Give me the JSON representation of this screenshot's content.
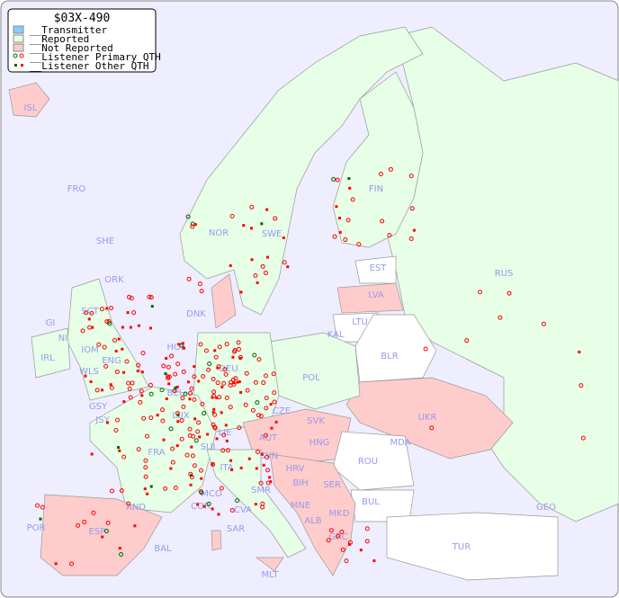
{
  "title": "$03X-490",
  "legend": [
    {
      "label": "__Transmitter",
      "color": "#88ccff"
    },
    {
      "label": "__Reported",
      "color": "#e6ffe6"
    },
    {
      "label": "__Not Reported",
      "color": "#ffcccc"
    },
    {
      "label": "__Listener Primary QTH",
      "color": "#ff0000"
    },
    {
      "label": "__Listener Other QTH",
      "color": "#ff0000"
    }
  ],
  "colors": {
    "sea": "#eeeeff",
    "reported": "#e6ffe6",
    "not_reported": "#ffcccc",
    "other": "#ffffff",
    "marker": "#ff0000",
    "marker_alt": "#006600",
    "label": "#9999ee"
  },
  "countries": [
    "ISL",
    "FRO",
    "SHE",
    "ORK",
    "NOR",
    "SWE",
    "FIN",
    "EST",
    "LVA",
    "LTU",
    "KAL",
    "RUS",
    "BLR",
    "POL",
    "DNK",
    "HOL",
    "BEL",
    "LUX",
    "DEU",
    "GSY",
    "JSY",
    "FRA",
    "SUI",
    "LIE",
    "AUT",
    "CZE",
    "SVK",
    "HNG",
    "UKR",
    "MDA",
    "ROU",
    "SVN",
    "HRV",
    "BIH",
    "SER",
    "BUL",
    "MNE",
    "ALB",
    "MKD",
    "GRC",
    "TUR",
    "GEO",
    "ITA",
    "MCO",
    "COR",
    "CVA",
    "SAR",
    "AND",
    "ESP",
    "POR",
    "BAL",
    "IRL",
    "NI",
    "GI",
    "IOM",
    "WLS",
    "ENG",
    "SCT",
    "MLT",
    "SMR"
  ]
}
